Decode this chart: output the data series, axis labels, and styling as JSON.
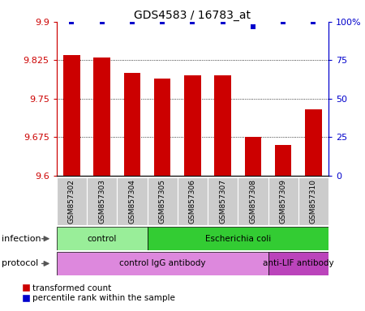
{
  "title": "GDS4583 / 16783_at",
  "samples": [
    "GSM857302",
    "GSM857303",
    "GSM857304",
    "GSM857305",
    "GSM857306",
    "GSM857307",
    "GSM857308",
    "GSM857309",
    "GSM857310"
  ],
  "red_values": [
    9.835,
    9.83,
    9.8,
    9.79,
    9.795,
    9.795,
    9.675,
    9.66,
    9.73
  ],
  "blue_values": [
    100,
    100,
    100,
    100,
    100,
    100,
    97,
    100,
    100
  ],
  "ylim_left": [
    9.6,
    9.9
  ],
  "ylim_right": [
    0,
    100
  ],
  "yticks_left": [
    9.6,
    9.675,
    9.75,
    9.825,
    9.9
  ],
  "yticks_right": [
    0,
    25,
    50,
    75,
    100
  ],
  "infection_groups": [
    {
      "label": "control",
      "start": 0,
      "end": 3,
      "color": "#99ee99"
    },
    {
      "label": "Escherichia coli",
      "start": 3,
      "end": 9,
      "color": "#33cc33"
    }
  ],
  "protocol_groups": [
    {
      "label": "control IgG antibody",
      "start": 0,
      "end": 7,
      "color": "#dd88dd"
    },
    {
      "label": "anti-LIF antibody",
      "start": 7,
      "end": 9,
      "color": "#bb44bb"
    }
  ],
  "bar_color": "#cc0000",
  "dot_color": "#0000cc",
  "sample_bg_color": "#cccccc",
  "left_axis_color": "#cc0000",
  "right_axis_color": "#0000cc",
  "legend_red_label": "transformed count",
  "legend_blue_label": "percentile rank within the sample",
  "grid_yticks": [
    9.675,
    9.75,
    9.825
  ]
}
